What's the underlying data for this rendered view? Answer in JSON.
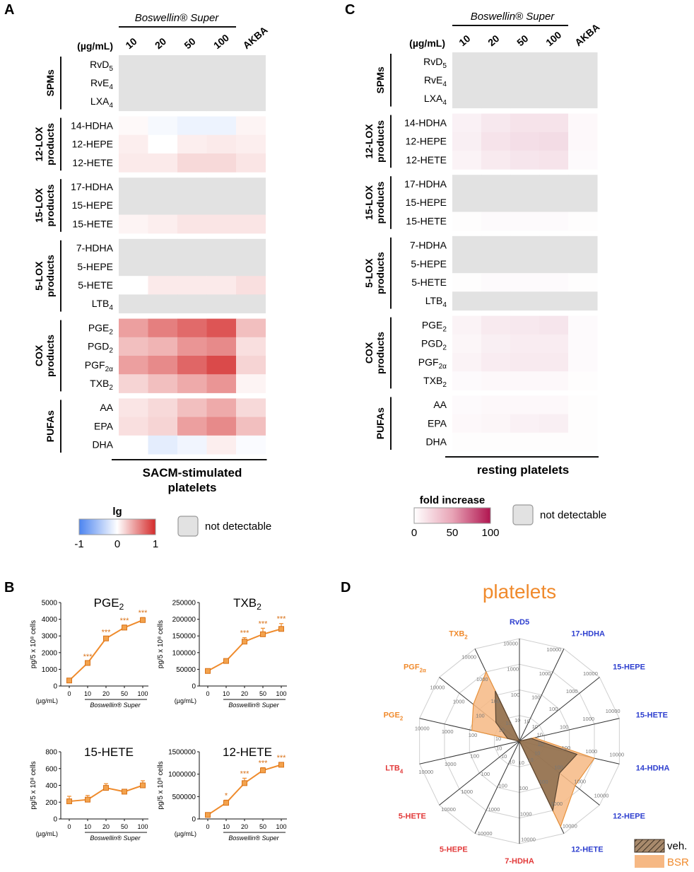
{
  "panel_letters": {
    "a": "A",
    "b": "B",
    "c": "C",
    "d": "D"
  },
  "heatmap_a": {
    "title": "Boswellin® Super",
    "unit_label": "(µg/mL)",
    "columns": [
      "10",
      "20",
      "50",
      "100",
      "AKBA"
    ],
    "footer": [
      "SACM-stimulated",
      "platelets"
    ]
  },
  "heatmap_c": {
    "title": "Boswellin® Super",
    "unit_label": "(µg/mL)",
    "columns": [
      "10",
      "20",
      "50",
      "100",
      "AKBA"
    ],
    "footer": [
      "resting platelets"
    ]
  },
  "legend_a": {
    "title": "lg",
    "ticks": [
      "-1",
      "0",
      "1"
    ],
    "nd_label": "not detectable"
  },
  "legend_c": {
    "title": "fold increase",
    "ticks": [
      "0",
      "50",
      "100"
    ],
    "nd_label": "not detectable"
  },
  "colors": {
    "nd_gray": "#e2e2e2",
    "line_orange": "#ef8b2c",
    "red_high": "#d42a2a",
    "blue_low": "#4c84f0",
    "crimson_high": "#b01550",
    "veh_fill": "#8b6d4f",
    "bsr_fill": "#f6b884"
  },
  "chart_data": [
    {
      "type": "heatmap",
      "panel": "A",
      "title": "SACM-stimulated platelets",
      "columns": [
        "10",
        "20",
        "50",
        "100",
        "AKBA"
      ],
      "scale": "lg fold change, -1 to 1; null = not detectable",
      "groups": [
        {
          "label": [
            "SPMs"
          ],
          "rows": [
            {
              "name": "RvD",
              "sub": "5",
              "values": [
                null,
                null,
                null,
                null,
                null
              ]
            },
            {
              "name": "RvE",
              "sub": "4",
              "values": [
                null,
                null,
                null,
                null,
                null
              ]
            },
            {
              "name": "LXA",
              "sub": "4",
              "values": [
                null,
                null,
                null,
                null,
                null
              ]
            }
          ]
        },
        {
          "label": [
            "12-LOX",
            "products"
          ],
          "rows": [
            {
              "name": "14-HDHA",
              "sub": "",
              "values": [
                0.03,
                -0.05,
                -0.1,
                -0.1,
                0.05
              ]
            },
            {
              "name": "12-HEPE",
              "sub": "",
              "values": [
                0.08,
                0.0,
                0.08,
                0.1,
                0.08
              ]
            },
            {
              "name": "12-HETE",
              "sub": "",
              "values": [
                0.1,
                0.1,
                0.18,
                0.18,
                0.12
              ]
            }
          ]
        },
        {
          "label": [
            "15-LOX",
            "products"
          ],
          "rows": [
            {
              "name": "17-HDHA",
              "sub": "",
              "values": [
                null,
                null,
                null,
                null,
                null
              ]
            },
            {
              "name": "15-HEPE",
              "sub": "",
              "values": [
                null,
                null,
                null,
                null,
                null
              ]
            },
            {
              "name": "15-HETE",
              "sub": "",
              "values": [
                0.05,
                0.08,
                0.12,
                0.12,
                0.12
              ]
            }
          ]
        },
        {
          "label": [
            "5-LOX",
            "products"
          ],
          "rows": [
            {
              "name": "7-HDHA",
              "sub": "",
              "values": [
                null,
                null,
                null,
                null,
                null
              ]
            },
            {
              "name": "5-HEPE",
              "sub": "",
              "values": [
                null,
                null,
                null,
                null,
                null
              ]
            },
            {
              "name": "5-HETE",
              "sub": "",
              "values": [
                0.0,
                0.1,
                0.1,
                0.1,
                0.15
              ]
            },
            {
              "name": "LTB",
              "sub": "4",
              "values": [
                null,
                null,
                null,
                null,
                null
              ]
            }
          ]
        },
        {
          "label": [
            "COX",
            "products"
          ],
          "rows": [
            {
              "name": "PGE",
              "sub": "2",
              "values": [
                0.45,
                0.6,
                0.7,
                0.8,
                0.3
              ]
            },
            {
              "name": "PGD",
              "sub": "2",
              "values": [
                0.3,
                0.35,
                0.5,
                0.55,
                0.15
              ]
            },
            {
              "name": "PGF",
              "sub": "2α",
              "values": [
                0.45,
                0.55,
                0.72,
                0.85,
                0.2
              ]
            },
            {
              "name": "TXB",
              "sub": "2",
              "values": [
                0.2,
                0.3,
                0.4,
                0.5,
                0.05
              ]
            }
          ]
        },
        {
          "label": [
            "PUFAs"
          ],
          "rows": [
            {
              "name": "AA",
              "sub": "",
              "values": [
                0.12,
                0.18,
                0.3,
                0.4,
                0.18
              ]
            },
            {
              "name": "EPA",
              "sub": "",
              "values": [
                0.15,
                0.2,
                0.45,
                0.55,
                0.3
              ]
            },
            {
              "name": "DHA",
              "sub": "",
              "values": [
                0.0,
                -0.15,
                -0.08,
                0.08,
                -0.03
              ]
            }
          ]
        }
      ]
    },
    {
      "type": "heatmap",
      "panel": "C",
      "title": "resting platelets",
      "columns": [
        "10",
        "20",
        "50",
        "100",
        "AKBA"
      ],
      "scale": "fold increase, 0 to 100; null = not detectable",
      "groups": [
        {
          "label": [
            "SPMs"
          ],
          "rows": [
            {
              "name": "RvD",
              "sub": "5",
              "values": [
                null,
                null,
                null,
                null,
                null
              ]
            },
            {
              "name": "RvE",
              "sub": "4",
              "values": [
                null,
                null,
                null,
                null,
                null
              ]
            },
            {
              "name": "LXA",
              "sub": "4",
              "values": [
                null,
                null,
                null,
                null,
                null
              ]
            }
          ]
        },
        {
          "label": [
            "12-LOX",
            "products"
          ],
          "rows": [
            {
              "name": "14-HDHA",
              "sub": "",
              "values": [
                6,
                10,
                12,
                12,
                3
              ]
            },
            {
              "name": "12-HEPE",
              "sub": "",
              "values": [
                7,
                12,
                14,
                15,
                3
              ]
            },
            {
              "name": "12-HETE",
              "sub": "",
              "values": [
                5,
                9,
                11,
                12,
                2
              ]
            }
          ]
        },
        {
          "label": [
            "15-LOX",
            "products"
          ],
          "rows": [
            {
              "name": "17-HDHA",
              "sub": "",
              "values": [
                null,
                null,
                null,
                null,
                null
              ]
            },
            {
              "name": "15-HEPE",
              "sub": "",
              "values": [
                null,
                null,
                null,
                null,
                null
              ]
            },
            {
              "name": "15-HETE",
              "sub": "",
              "values": [
                1,
                2,
                2,
                2,
                1
              ]
            }
          ]
        },
        {
          "label": [
            "5-LOX",
            "products"
          ],
          "rows": [
            {
              "name": "7-HDHA",
              "sub": "",
              "values": [
                null,
                null,
                null,
                null,
                null
              ]
            },
            {
              "name": "5-HEPE",
              "sub": "",
              "values": [
                null,
                null,
                null,
                null,
                null
              ]
            },
            {
              "name": "5-HETE",
              "sub": "",
              "values": [
                1,
                2,
                2,
                2,
                1
              ]
            },
            {
              "name": "LTB",
              "sub": "4",
              "values": [
                null,
                null,
                null,
                null,
                null
              ]
            }
          ]
        },
        {
          "label": [
            "COX",
            "products"
          ],
          "rows": [
            {
              "name": "PGE",
              "sub": "2",
              "values": [
                5,
                9,
                10,
                11,
                2
              ]
            },
            {
              "name": "PGD",
              "sub": "2",
              "values": [
                4,
                7,
                8,
                8,
                2
              ]
            },
            {
              "name": "PGF",
              "sub": "2α",
              "values": [
                5,
                8,
                9,
                9,
                2
              ]
            },
            {
              "name": "TXB",
              "sub": "2",
              "values": [
                2,
                3,
                3,
                3,
                1
              ]
            }
          ]
        },
        {
          "label": [
            "PUFAs"
          ],
          "rows": [
            {
              "name": "AA",
              "sub": "",
              "values": [
                2,
                3,
                3,
                3,
                1
              ]
            },
            {
              "name": "EPA",
              "sub": "",
              "values": [
                3,
                4,
                6,
                7,
                1
              ]
            },
            {
              "name": "DHA",
              "sub": "",
              "values": [
                1,
                1,
                1,
                1,
                1
              ]
            }
          ]
        }
      ]
    },
    {
      "type": "line",
      "panel": "B",
      "title_main": "PGE",
      "title_sub": "2",
      "x": [
        "0",
        "10",
        "20",
        "50",
        "100"
      ],
      "y": [
        330,
        1380,
        2850,
        3500,
        3950
      ],
      "err": [
        0,
        100,
        100,
        150,
        150
      ],
      "sig": [
        "",
        "***",
        "***",
        "***",
        "***"
      ],
      "ylim": [
        0,
        5000
      ],
      "yticks": [
        "0",
        "1000",
        "2000",
        "3000",
        "4000",
        "5000"
      ],
      "ylabel": "pg/5 x 10⁸ cells",
      "xlabel_unit": "(µg/mL)",
      "xlabel": "Boswellin® Super"
    },
    {
      "type": "line",
      "panel": "B",
      "title_main": "TXB",
      "title_sub": "2",
      "x": [
        "0",
        "10",
        "20",
        "50",
        "100"
      ],
      "y": [
        45000,
        75000,
        133000,
        155000,
        171000
      ],
      "err": [
        0,
        3000,
        12000,
        18000,
        16000
      ],
      "sig": [
        "",
        "",
        "***",
        "***",
        "***"
      ],
      "ylim": [
        0,
        250000
      ],
      "yticks": [
        "0",
        "50000",
        "100000",
        "150000",
        "200000",
        "250000"
      ],
      "ylabel": "pg/5 x 10⁸ cells",
      "xlabel_unit": "(µg/mL)",
      "xlabel": "Boswellin® Super"
    },
    {
      "type": "line",
      "panel": "B",
      "title_main": "15-HETE",
      "title_sub": "",
      "x": [
        "0",
        "10",
        "20",
        "50",
        "100"
      ],
      "y": [
        210,
        230,
        370,
        325,
        400
      ],
      "err": [
        60,
        50,
        50,
        20,
        55
      ],
      "sig": [
        "",
        "",
        "",
        "",
        ""
      ],
      "ylim": [
        0,
        800
      ],
      "yticks": [
        "0",
        "200",
        "400",
        "600",
        "800"
      ],
      "ylabel": "pg/5 x 10⁸ cells",
      "xlabel_unit": "(µg/mL)",
      "xlabel": "Boswellin® Super"
    },
    {
      "type": "line",
      "panel": "B",
      "title_main": "12-HETE",
      "title_sub": "",
      "x": [
        "0",
        "10",
        "20",
        "50",
        "100"
      ],
      "y": [
        90000,
        360000,
        800000,
        1085000,
        1210000
      ],
      "err": [
        0,
        60000,
        110000,
        60000,
        50000
      ],
      "sig": [
        "",
        "*",
        "***",
        "***",
        "***"
      ],
      "ylim": [
        0,
        1500000
      ],
      "yticks": [
        "0",
        "500000",
        "1000000",
        "1500000"
      ],
      "ylabel": "pg/5 x 10⁸ cells",
      "xlabel_unit": "(µg/mL)",
      "xlabel": "Boswellin® Super"
    },
    {
      "type": "radar",
      "panel": "D",
      "title": "platelets",
      "scale": "log10, 1 to 10000",
      "ring_labels": [
        "10",
        "100",
        "1000",
        "10000"
      ],
      "axes": [
        {
          "main": "RvD5",
          "sub": "",
          "color": "#2e3fcf"
        },
        {
          "main": "17-HDHA",
          "sub": "",
          "color": "#2e3fcf"
        },
        {
          "main": "15-HEPE",
          "sub": "",
          "color": "#2e3fcf"
        },
        {
          "main": "15-HETE",
          "sub": "",
          "color": "#2e3fcf"
        },
        {
          "main": "14-HDHA",
          "sub": "",
          "color": "#2e3fcf"
        },
        {
          "main": "12-HEPE",
          "sub": "",
          "color": "#2e3fcf"
        },
        {
          "main": "12-HETE",
          "sub": "",
          "color": "#2e3fcf"
        },
        {
          "main": "7-HDHA",
          "sub": "",
          "color": "#e23a3a"
        },
        {
          "main": "5-HEPE",
          "sub": "",
          "color": "#e23a3a"
        },
        {
          "main": "5-HETE",
          "sub": "",
          "color": "#e23a3a"
        },
        {
          "main": "LTB",
          "sub": "4",
          "color": "#e23a3a"
        },
        {
          "main": "PGE",
          "sub": "2",
          "color": "#f08a2c"
        },
        {
          "main": "PGF",
          "sub": "2α",
          "color": "#f08a2c"
        },
        {
          "main": "TXB",
          "sub": "2",
          "color": "#f08a2c"
        }
      ],
      "series": [
        {
          "name": "veh.",
          "values": [
            1,
            1,
            1,
            3,
            200,
            100,
            1000,
            1,
            1,
            1,
            1,
            3,
            15,
            150
          ]
        },
        {
          "name": "BSR",
          "values": [
            1,
            1,
            1,
            4,
            1000,
            600,
            5000,
            1,
            1,
            1,
            1,
            80,
            200,
            1000
          ]
        }
      ],
      "legend": [
        "veh.",
        "BSR"
      ]
    }
  ]
}
